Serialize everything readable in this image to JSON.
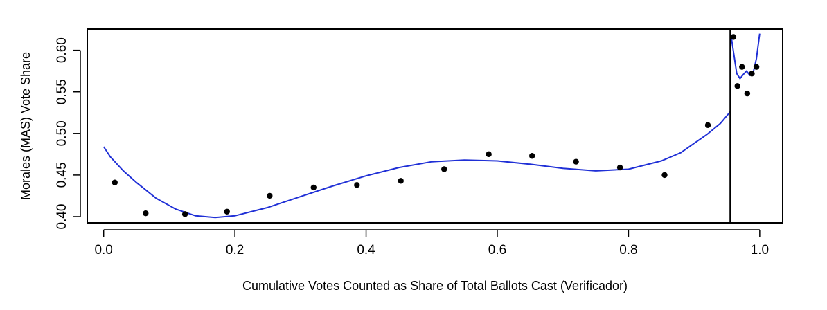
{
  "chart_data": {
    "type": "scatter",
    "title": "",
    "xlabel": "Cumulative Votes Counted as Share of Total Ballots Cast (Verificador)",
    "ylabel": "Morales (MAS) Vote Share",
    "xlim": [
      -0.025,
      1.035
    ],
    "ylim": [
      0.3925,
      0.6255
    ],
    "x_ticks": [
      0.0,
      0.2,
      0.4,
      0.6,
      0.8,
      1.0
    ],
    "x_tick_labels": [
      "0.0",
      "0.2",
      "0.4",
      "0.6",
      "0.8",
      "1.0"
    ],
    "y_ticks": [
      0.4,
      0.45,
      0.5,
      0.55,
      0.6
    ],
    "y_tick_labels": [
      "0.40",
      "0.45",
      "0.50",
      "0.55",
      "0.60"
    ],
    "vertical_line_x": 0.955,
    "grid": false,
    "colors": {
      "points": "#000000",
      "fit_line": "#1f2fd6",
      "axes": "#000000"
    },
    "points": {
      "x": [
        0.017,
        0.064,
        0.124,
        0.188,
        0.253,
        0.32,
        0.386,
        0.453,
        0.519,
        0.587,
        0.653,
        0.72,
        0.787,
        0.855,
        0.921,
        0.96,
        0.966,
        0.973,
        0.981,
        0.988,
        0.995
      ],
      "y": [
        0.441,
        0.404,
        0.403,
        0.406,
        0.425,
        0.435,
        0.438,
        0.443,
        0.457,
        0.475,
        0.473,
        0.466,
        0.459,
        0.45,
        0.51,
        0.616,
        0.557,
        0.58,
        0.548,
        0.572,
        0.58
      ]
    },
    "fit_left": {
      "x": [
        0.0,
        0.01,
        0.03,
        0.05,
        0.08,
        0.11,
        0.14,
        0.17,
        0.2,
        0.25,
        0.3,
        0.35,
        0.4,
        0.45,
        0.5,
        0.55,
        0.6,
        0.65,
        0.7,
        0.75,
        0.8,
        0.85,
        0.88,
        0.9,
        0.92,
        0.94,
        0.955
      ],
      "y": [
        0.484,
        0.472,
        0.455,
        0.441,
        0.422,
        0.409,
        0.401,
        0.399,
        0.401,
        0.411,
        0.424,
        0.437,
        0.449,
        0.459,
        0.466,
        0.468,
        0.467,
        0.463,
        0.458,
        0.455,
        0.457,
        0.467,
        0.477,
        0.488,
        0.499,
        0.512,
        0.526
      ]
    },
    "fit_right": {
      "x": [
        0.956,
        0.96,
        0.965,
        0.97,
        0.975,
        0.98,
        0.985,
        0.99,
        0.995,
        1.0
      ],
      "y": [
        0.619,
        0.598,
        0.572,
        0.566,
        0.571,
        0.575,
        0.57,
        0.573,
        0.59,
        0.62
      ]
    }
  }
}
